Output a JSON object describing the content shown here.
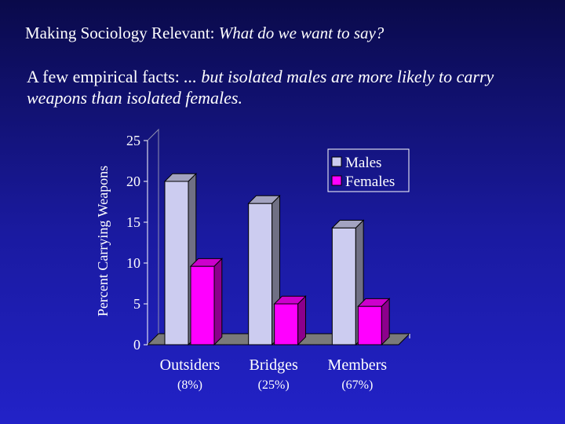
{
  "slide": {
    "title_plain": "Making Sociology Relevant: ",
    "title_italic": "What do we want to say?",
    "subtitle_plain": "A few empirical facts: ",
    "subtitle_italic": "... but isolated males are more likely to carry weapons than isolated females."
  },
  "chart_data": {
    "type": "bar",
    "ylabel": "Percent Carrying Weapons",
    "ylim": [
      0,
      25
    ],
    "yticks": [
      "0",
      "5",
      "10",
      "15",
      "20",
      "25"
    ],
    "categories": [
      "Outsiders",
      "Bridges",
      "Members"
    ],
    "category_sublabels": [
      "(8%)",
      "(25%)",
      "(67%)"
    ],
    "series": [
      {
        "name": "Males",
        "values": [
          20,
          17.3,
          14.3
        ],
        "color": "#ccccf0"
      },
      {
        "name": "Females",
        "values": [
          9.6,
          5,
          4.7
        ],
        "color": "#ff00ff"
      }
    ],
    "legend_position": "top-right",
    "three_d": true
  }
}
